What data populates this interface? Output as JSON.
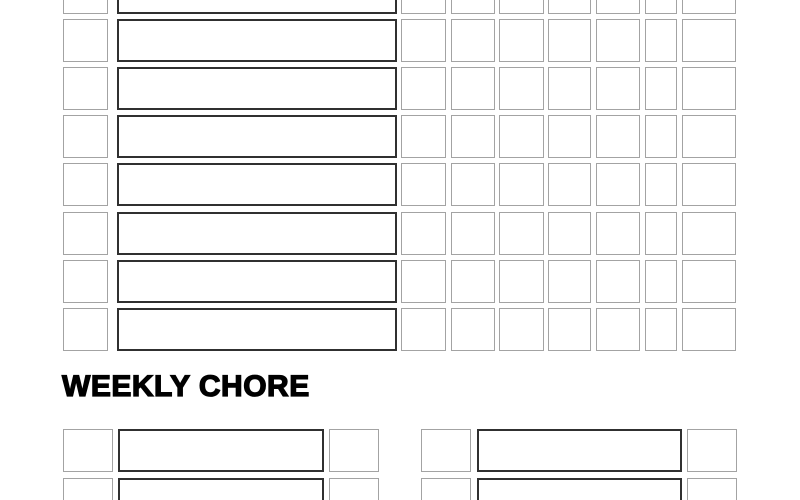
{
  "document": {
    "title": "Chore chart template",
    "background": "#ffffff"
  },
  "daily_section": {
    "visible_rows": 8,
    "first_row_clipped_at_top": true,
    "day_checkbox_columns": 7,
    "row_contents": {
      "completion_checkbox_value": "",
      "chore_name_value": "",
      "day_checkbox_values": [
        "",
        "",
        "",
        "",
        "",
        "",
        ""
      ]
    }
  },
  "weekly_section": {
    "heading": "WEEKLY CHORE",
    "column_groups": 2,
    "visible_rows_per_group": 2,
    "last_row_clipped_at_bottom": true,
    "row_contents": {
      "completion_checkbox_value": "",
      "chore_name_value": "",
      "done_checkbox_value": ""
    }
  },
  "colors": {
    "background": "#ffffff",
    "checkbox_border": "#a3a3a3",
    "field_border": "#303030",
    "heading": "#000000"
  }
}
